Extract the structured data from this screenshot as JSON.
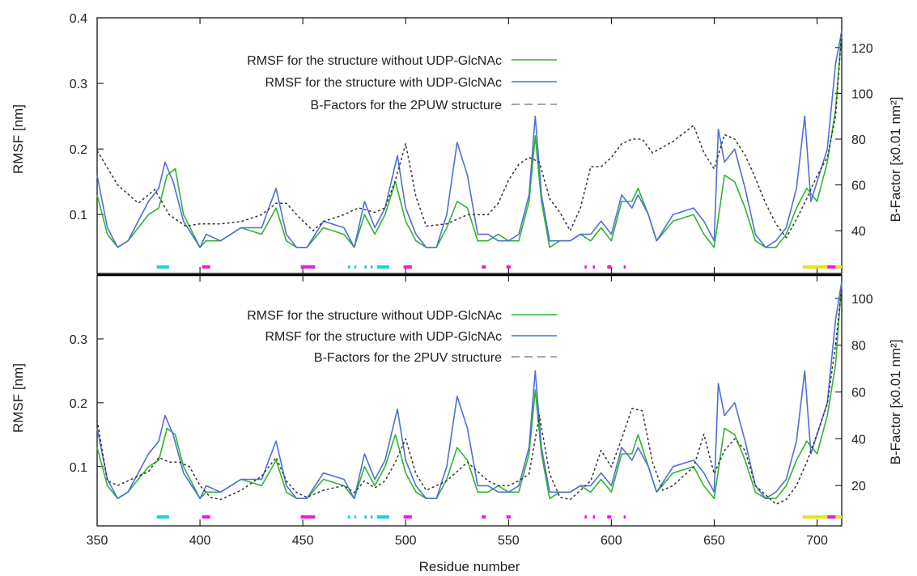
{
  "chart_data": [
    {
      "type": "line",
      "panel": "top",
      "ylabel": "RMSF [nm]",
      "y2label": "B-Factor [x0.01 nm²]",
      "xlim": [
        350,
        712
      ],
      "ylim": [
        0.03,
        0.4
      ],
      "y2lim": [
        27,
        133
      ],
      "yticks": [
        "0.1",
        "0.2",
        "0.3",
        "0.4"
      ],
      "y2ticks": [
        "40",
        "60",
        "80",
        "100",
        "120"
      ],
      "series": [
        {
          "name": "RMSF for the structure without UDP-GlcNAc",
          "color": "#2fb52f",
          "axis": "left",
          "style": "solid",
          "x": [
            350,
            355,
            360,
            365,
            370,
            375,
            380,
            384,
            388,
            392,
            400,
            403,
            410,
            420,
            430,
            437,
            442,
            447,
            452,
            460,
            470,
            475,
            480,
            485,
            490,
            495,
            500,
            505,
            510,
            515,
            520,
            525,
            530,
            535,
            540,
            545,
            550,
            555,
            560,
            563,
            566,
            570,
            575,
            580,
            585,
            590,
            595,
            600,
            605,
            610,
            613,
            618,
            622,
            630,
            640,
            645,
            650,
            655,
            660,
            665,
            670,
            675,
            680,
            685,
            690,
            695,
            700,
            705,
            709,
            712
          ],
          "y": [
            0.13,
            0.07,
            0.05,
            0.06,
            0.08,
            0.1,
            0.11,
            0.16,
            0.17,
            0.1,
            0.05,
            0.06,
            0.06,
            0.08,
            0.07,
            0.11,
            0.06,
            0.05,
            0.05,
            0.08,
            0.07,
            0.05,
            0.1,
            0.07,
            0.1,
            0.15,
            0.09,
            0.06,
            0.05,
            0.05,
            0.08,
            0.12,
            0.11,
            0.06,
            0.06,
            0.07,
            0.06,
            0.06,
            0.12,
            0.22,
            0.12,
            0.05,
            0.06,
            0.06,
            0.07,
            0.06,
            0.08,
            0.06,
            0.12,
            0.12,
            0.14,
            0.1,
            0.06,
            0.09,
            0.1,
            0.07,
            0.05,
            0.16,
            0.15,
            0.11,
            0.06,
            0.05,
            0.05,
            0.07,
            0.11,
            0.14,
            0.12,
            0.18,
            0.26,
            0.38
          ]
        },
        {
          "name": "RMSF for the structure with UDP-GlcNAc",
          "color": "#4f6fd9",
          "axis": "left",
          "style": "solid",
          "x": [
            350,
            355,
            360,
            365,
            370,
            375,
            380,
            383,
            387,
            392,
            400,
            403,
            410,
            420,
            430,
            437,
            442,
            447,
            452,
            460,
            470,
            475,
            480,
            485,
            490,
            496,
            500,
            505,
            510,
            515,
            520,
            525,
            530,
            535,
            540,
            545,
            550,
            555,
            560,
            563,
            566,
            570,
            575,
            580,
            585,
            590,
            595,
            600,
            605,
            610,
            613,
            618,
            622,
            630,
            640,
            645,
            650,
            652,
            655,
            660,
            665,
            670,
            675,
            680,
            685,
            690,
            694,
            697,
            700,
            705,
            709,
            712
          ],
          "y": [
            0.16,
            0.08,
            0.05,
            0.06,
            0.09,
            0.12,
            0.14,
            0.18,
            0.15,
            0.09,
            0.05,
            0.07,
            0.06,
            0.08,
            0.08,
            0.14,
            0.07,
            0.05,
            0.05,
            0.09,
            0.08,
            0.05,
            0.12,
            0.08,
            0.11,
            0.19,
            0.11,
            0.07,
            0.05,
            0.05,
            0.1,
            0.21,
            0.16,
            0.07,
            0.07,
            0.06,
            0.06,
            0.07,
            0.13,
            0.25,
            0.13,
            0.06,
            0.06,
            0.06,
            0.07,
            0.07,
            0.09,
            0.07,
            0.13,
            0.11,
            0.13,
            0.1,
            0.06,
            0.1,
            0.11,
            0.09,
            0.06,
            0.23,
            0.18,
            0.2,
            0.14,
            0.07,
            0.05,
            0.06,
            0.08,
            0.14,
            0.25,
            0.12,
            0.15,
            0.2,
            0.33,
            0.38
          ]
        },
        {
          "name": "B-Factors for the 2PUW structure",
          "color": "#333333",
          "axis": "right",
          "style": "dashed",
          "x": [
            350,
            360,
            370,
            378,
            385,
            393,
            400,
            410,
            420,
            430,
            437,
            442,
            448,
            455,
            460,
            470,
            477,
            485,
            490,
            495,
            500,
            505,
            510,
            520,
            530,
            540,
            545,
            550,
            555,
            560,
            565,
            570,
            575,
            580,
            585,
            590,
            595,
            600,
            605,
            610,
            615,
            620,
            630,
            640,
            645,
            650,
            655,
            660,
            665,
            670,
            675,
            680,
            685,
            690,
            695,
            700,
            705,
            709,
            712
          ],
          "y": [
            75,
            60,
            52,
            58,
            47,
            42,
            43,
            43,
            44,
            47,
            52,
            52,
            46,
            40,
            44,
            47,
            50,
            48,
            50,
            62,
            78,
            55,
            42,
            43,
            47,
            47,
            52,
            62,
            69,
            72,
            70,
            54,
            48,
            40,
            50,
            68,
            68,
            72,
            78,
            80,
            80,
            74,
            79,
            86,
            74,
            67,
            82,
            80,
            73,
            63,
            52,
            43,
            37,
            45,
            54,
            64,
            72,
            90,
            127
          ]
        }
      ],
      "bars": [
        {
          "color": "#1fd0e0",
          "segments": [
            [
              379,
              385
            ]
          ]
        },
        {
          "color": "#e81fd8",
          "segments": [
            [
              401,
              405
            ],
            [
              449,
              456
            ],
            [
              499,
              503
            ],
            [
              537,
              539
            ],
            [
              549,
              551
            ]
          ]
        },
        {
          "color": "#1fd0e0",
          "segments": [
            [
              472,
              473
            ],
            [
              475,
              476
            ],
            [
              480,
              481
            ],
            [
              483,
              484
            ],
            [
              486,
              492
            ]
          ]
        },
        {
          "color": "#e81fd8",
          "segments": [
            [
              587,
              588
            ],
            [
              591,
              592
            ],
            [
              598,
              600
            ],
            [
              606,
              607
            ]
          ]
        },
        {
          "color": "#e8e41a",
          "segments": [
            [
              693,
              712
            ]
          ]
        },
        {
          "color": "#e81fd8",
          "segments": [
            [
              705,
              709
            ]
          ]
        }
      ]
    },
    {
      "type": "line",
      "panel": "bottom",
      "xlabel": "Residue number",
      "ylabel": "RMSF [nm]",
      "y2label": "B-Factor [x0.01 nm²]",
      "xlim": [
        350,
        712
      ],
      "ylim": [
        0.03,
        0.4
      ],
      "y2lim": [
        9,
        110
      ],
      "xticks": [
        "350",
        "400",
        "450",
        "500",
        "550",
        "600",
        "650",
        "700"
      ],
      "yticks": [
        "0.1",
        "0.2",
        "0.3"
      ],
      "y2ticks": [
        "20",
        "40",
        "60",
        "80",
        "100"
      ],
      "series": [
        {
          "name": "RMSF for the structure without UDP-GlcNAc",
          "color": "#2fb52f",
          "axis": "left",
          "style": "solid",
          "x": [
            350,
            355,
            360,
            365,
            370,
            375,
            380,
            384,
            388,
            392,
            400,
            403,
            410,
            420,
            430,
            437,
            442,
            447,
            452,
            460,
            470,
            475,
            480,
            485,
            490,
            495,
            500,
            505,
            510,
            515,
            520,
            525,
            530,
            535,
            540,
            545,
            550,
            555,
            560,
            563,
            566,
            570,
            575,
            580,
            585,
            590,
            595,
            600,
            605,
            610,
            613,
            618,
            622,
            630,
            640,
            645,
            650,
            655,
            660,
            665,
            670,
            675,
            680,
            685,
            690,
            695,
            700,
            705,
            709,
            712
          ],
          "y": [
            0.13,
            0.07,
            0.05,
            0.06,
            0.08,
            0.1,
            0.11,
            0.16,
            0.15,
            0.1,
            0.05,
            0.06,
            0.06,
            0.08,
            0.07,
            0.11,
            0.06,
            0.05,
            0.05,
            0.08,
            0.07,
            0.05,
            0.1,
            0.07,
            0.1,
            0.15,
            0.09,
            0.06,
            0.05,
            0.05,
            0.08,
            0.13,
            0.11,
            0.06,
            0.06,
            0.07,
            0.06,
            0.06,
            0.12,
            0.22,
            0.12,
            0.05,
            0.06,
            0.06,
            0.07,
            0.06,
            0.08,
            0.06,
            0.12,
            0.12,
            0.15,
            0.1,
            0.06,
            0.09,
            0.1,
            0.07,
            0.05,
            0.16,
            0.15,
            0.11,
            0.06,
            0.05,
            0.05,
            0.07,
            0.11,
            0.14,
            0.12,
            0.18,
            0.26,
            0.39
          ]
        },
        {
          "name": "RMSF for the structure with UDP-GlcNAc",
          "color": "#4f6fd9",
          "axis": "left",
          "style": "solid",
          "x": [
            350,
            355,
            360,
            365,
            370,
            375,
            380,
            383,
            387,
            392,
            400,
            403,
            410,
            420,
            430,
            437,
            442,
            447,
            452,
            460,
            470,
            475,
            480,
            485,
            490,
            496,
            500,
            505,
            510,
            515,
            520,
            525,
            530,
            535,
            540,
            545,
            550,
            555,
            560,
            563,
            566,
            570,
            575,
            580,
            585,
            590,
            595,
            600,
            605,
            610,
            613,
            618,
            622,
            630,
            640,
            645,
            650,
            652,
            655,
            660,
            665,
            670,
            675,
            680,
            685,
            690,
            694,
            697,
            700,
            705,
            709,
            712
          ],
          "y": [
            0.16,
            0.08,
            0.05,
            0.06,
            0.09,
            0.12,
            0.14,
            0.18,
            0.15,
            0.09,
            0.05,
            0.07,
            0.06,
            0.08,
            0.08,
            0.14,
            0.07,
            0.05,
            0.05,
            0.09,
            0.08,
            0.05,
            0.12,
            0.08,
            0.11,
            0.19,
            0.11,
            0.07,
            0.05,
            0.05,
            0.1,
            0.21,
            0.16,
            0.07,
            0.07,
            0.06,
            0.06,
            0.07,
            0.13,
            0.25,
            0.13,
            0.06,
            0.06,
            0.06,
            0.07,
            0.07,
            0.09,
            0.07,
            0.13,
            0.11,
            0.13,
            0.1,
            0.06,
            0.1,
            0.11,
            0.09,
            0.06,
            0.23,
            0.18,
            0.2,
            0.14,
            0.07,
            0.05,
            0.06,
            0.08,
            0.14,
            0.25,
            0.12,
            0.15,
            0.2,
            0.33,
            0.39
          ]
        },
        {
          "name": "B-Factors for the 2PUV structure",
          "color": "#333333",
          "axis": "right",
          "style": "dashed",
          "x": [
            350,
            355,
            360,
            365,
            370,
            375,
            380,
            385,
            390,
            395,
            400,
            405,
            410,
            420,
            430,
            437,
            442,
            447,
            452,
            460,
            470,
            475,
            480,
            485,
            490,
            495,
            500,
            505,
            510,
            520,
            530,
            540,
            545,
            550,
            555,
            560,
            565,
            570,
            575,
            580,
            585,
            590,
            595,
            600,
            605,
            610,
            615,
            620,
            625,
            630,
            640,
            645,
            650,
            655,
            660,
            665,
            670,
            675,
            680,
            685,
            690,
            695,
            700,
            705,
            709,
            712
          ],
          "y": [
            48,
            22,
            20,
            22,
            24,
            26,
            32,
            30,
            30,
            28,
            20,
            15,
            14,
            18,
            24,
            32,
            22,
            17,
            15,
            18,
            20,
            17,
            22,
            19,
            22,
            30,
            40,
            25,
            18,
            22,
            30,
            22,
            20,
            20,
            22,
            25,
            50,
            25,
            15,
            14,
            18,
            22,
            35,
            28,
            40,
            53,
            52,
            30,
            18,
            20,
            28,
            42,
            25,
            35,
            40,
            35,
            20,
            16,
            12,
            14,
            20,
            30,
            42,
            55,
            80,
            105
          ]
        }
      ],
      "bars": [
        {
          "color": "#1fd0e0",
          "segments": [
            [
              379,
              385
            ]
          ]
        },
        {
          "color": "#e81fd8",
          "segments": [
            [
              401,
              405
            ],
            [
              449,
              456
            ],
            [
              499,
              503
            ],
            [
              537,
              539
            ],
            [
              549,
              551
            ]
          ]
        },
        {
          "color": "#1fd0e0",
          "segments": [
            [
              472,
              473
            ],
            [
              475,
              476
            ],
            [
              480,
              481
            ],
            [
              483,
              484
            ],
            [
              486,
              492
            ]
          ]
        },
        {
          "color": "#e81fd8",
          "segments": [
            [
              587,
              588
            ],
            [
              591,
              592
            ],
            [
              598,
              600
            ],
            [
              606,
              607
            ]
          ]
        },
        {
          "color": "#e8e41a",
          "segments": [
            [
              693,
              712
            ]
          ]
        },
        {
          "color": "#e81fd8",
          "segments": [
            [
              705,
              709
            ]
          ]
        }
      ]
    }
  ]
}
